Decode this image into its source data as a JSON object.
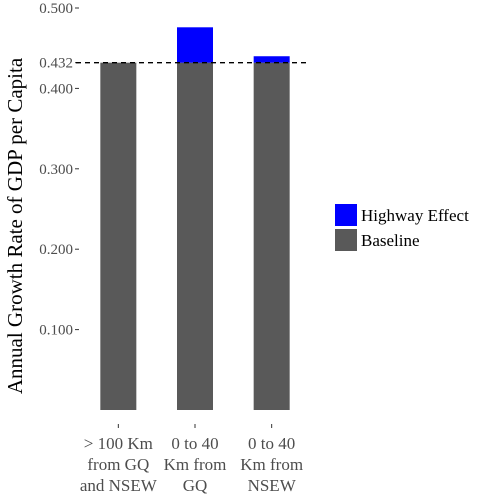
{
  "chart_data": {
    "type": "bar",
    "stacked": true,
    "categories": [
      [
        "> 100 Km",
        "from GQ",
        "and NSEW"
      ],
      [
        "0 to 40",
        "Km from",
        "GQ"
      ],
      [
        "0 to 40",
        "Km from",
        "NSEW"
      ]
    ],
    "series": [
      {
        "name": "Baseline",
        "color": "#595959",
        "values": [
          0.432,
          0.432,
          0.432
        ]
      },
      {
        "name": "Highway Effect",
        "color": "#0000ff",
        "values": [
          0,
          0.044,
          0.008
        ]
      }
    ],
    "ylabel": "Annual Growth Rate of GDP per Capita",
    "xlabel": "",
    "ylim": [
      0,
      0.5
    ],
    "yticks": [
      {
        "value": 0.1,
        "label": "0.100"
      },
      {
        "value": 0.2,
        "label": "0.200"
      },
      {
        "value": 0.3,
        "label": "0.300"
      },
      {
        "value": 0.4,
        "label": "0.400"
      },
      {
        "value": 0.432,
        "label": "0.432"
      },
      {
        "value": 0.5,
        "label": "0.500"
      }
    ],
    "reference_line": {
      "value": 0.432,
      "style": "dashed"
    },
    "grid": false,
    "legend": {
      "position": "right",
      "items": [
        {
          "name": "Highway Effect",
          "color": "#0000ff"
        },
        {
          "name": "Baseline",
          "color": "#595959"
        }
      ]
    }
  }
}
